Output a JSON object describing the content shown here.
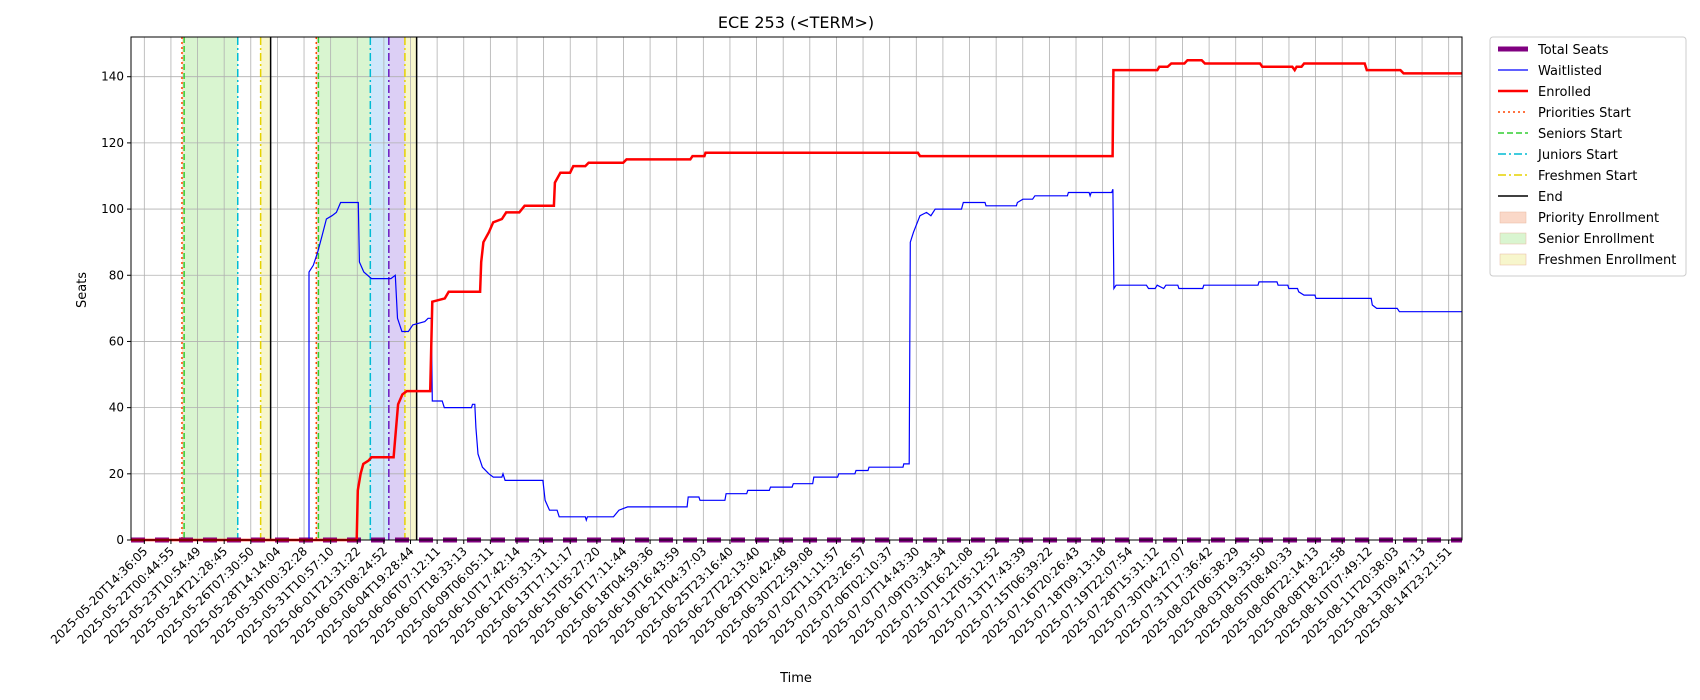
{
  "chart_data": {
    "type": "line",
    "title": "ECE 253 (<TERM>)",
    "xlabel": "Time",
    "ylabel": "Seats",
    "ylim": [
      0,
      152
    ],
    "yticks": [
      0,
      20,
      40,
      60,
      80,
      100,
      120,
      140
    ],
    "grid": true,
    "legend_position": "outside-right-top",
    "x_range": [
      0,
      1
    ],
    "x_tick_labels": [
      "2025-05-20T14:36:05",
      "2025-05-22T00:44:55",
      "2025-05-23T10:54:49",
      "2025-05-24T21:28:45",
      "2025-05-26T07:30:50",
      "2025-05-28T14:14:04",
      "2025-05-30T00:32:28",
      "2025-05-31T10:57:10",
      "2025-06-01T21:31:22",
      "2025-06-03T08:24:52",
      "2025-06-04T19:28:44",
      "2025-06-06T07:12:11",
      "2025-06-07T18:33:13",
      "2025-06-09T06:05:11",
      "2025-06-10T17:42:14",
      "2025-06-12T05:31:31",
      "2025-06-13T17:11:17",
      "2025-06-15T05:27:20",
      "2025-06-16T17:11:44",
      "2025-06-18T04:59:36",
      "2025-06-19T16:43:59",
      "2025-06-21T04:37:03",
      "2025-06-25T23:16:40",
      "2025-06-27T22:13:40",
      "2025-06-29T10:42:48",
      "2025-06-30T22:59:08",
      "2025-07-02T11:11:57",
      "2025-07-03T23:26:57",
      "2025-07-06T02:10:37",
      "2025-07-07T14:43:30",
      "2025-07-09T03:34:34",
      "2025-07-10T16:21:08",
      "2025-07-12T05:12:52",
      "2025-07-13T17:43:39",
      "2025-07-15T06:39:22",
      "2025-07-16T20:26:43",
      "2025-07-18T09:13:18",
      "2025-07-19T22:07:54",
      "2025-07-28T15:31:12",
      "2025-07-30T04:27:07",
      "2025-07-31T17:36:42",
      "2025-08-02T06:38:29",
      "2025-08-03T19:33:50",
      "2025-08-05T08:40:33",
      "2025-08-06T22:14:13",
      "2025-08-08T18:22:58",
      "2025-08-10T07:49:12",
      "2025-08-11T20:38:03",
      "2025-08-13T09:47:13",
      "2025-08-14T23:21:51"
    ],
    "series": [
      {
        "name": "Total Seats",
        "color": "#800080",
        "style": "dashed-thick",
        "points": [
          [
            0,
            0
          ],
          [
            1,
            0
          ]
        ]
      },
      {
        "name": "Waitlisted",
        "color": "#0000ff",
        "style": "solid-thin",
        "points": [
          [
            0,
            0
          ],
          [
            0.1337,
            0
          ],
          [
            0.1337,
            81
          ],
          [
            0.137,
            83
          ],
          [
            0.1403,
            87
          ],
          [
            0.1436,
            92
          ],
          [
            0.1468,
            97
          ],
          [
            0.151,
            98
          ],
          [
            0.1543,
            99
          ],
          [
            0.1575,
            102
          ],
          [
            0.1708,
            102
          ],
          [
            0.1716,
            84
          ],
          [
            0.1749,
            81
          ],
          [
            0.1806,
            79
          ],
          [
            0.1953,
            79
          ],
          [
            0.1986,
            80
          ],
          [
            0.2002,
            67
          ],
          [
            0.2035,
            63
          ],
          [
            0.2084,
            63
          ],
          [
            0.2117,
            65
          ],
          [
            0.2207,
            66
          ],
          [
            0.2232,
            67
          ],
          [
            0.2256,
            67
          ],
          [
            0.2264,
            42
          ],
          [
            0.2338,
            42
          ],
          [
            0.2354,
            40
          ],
          [
            0.2558,
            40
          ],
          [
            0.2566,
            41
          ],
          [
            0.2583,
            41
          ],
          [
            0.2591,
            34
          ],
          [
            0.2607,
            26
          ],
          [
            0.264,
            22
          ],
          [
            0.2689,
            20
          ],
          [
            0.2722,
            19
          ],
          [
            0.2787,
            19
          ],
          [
            0.2795,
            20
          ],
          [
            0.2811,
            18
          ],
          [
            0.3095,
            18
          ],
          [
            0.3111,
            12
          ],
          [
            0.3144,
            9
          ],
          [
            0.3201,
            9
          ],
          [
            0.3217,
            7
          ],
          [
            0.3413,
            7
          ],
          [
            0.3421,
            6
          ],
          [
            0.3429,
            7
          ],
          [
            0.3625,
            7
          ],
          [
            0.3666,
            9
          ],
          [
            0.3731,
            10
          ],
          [
            0.4178,
            10
          ],
          [
            0.4186,
            13
          ],
          [
            0.4267,
            13
          ],
          [
            0.4275,
            12
          ],
          [
            0.4462,
            12
          ],
          [
            0.4471,
            14
          ],
          [
            0.4626,
            14
          ],
          [
            0.4634,
            15
          ],
          [
            0.4796,
            15
          ],
          [
            0.4805,
            16
          ],
          [
            0.4967,
            16
          ],
          [
            0.4976,
            17
          ],
          [
            0.5122,
            17
          ],
          [
            0.513,
            19
          ],
          [
            0.5309,
            19
          ],
          [
            0.5317,
            20
          ],
          [
            0.5439,
            20
          ],
          [
            0.5447,
            21
          ],
          [
            0.5537,
            21
          ],
          [
            0.5545,
            22
          ],
          [
            0.58,
            22
          ],
          [
            0.5806,
            23
          ],
          [
            0.5847,
            23
          ],
          [
            0.5855,
            90
          ],
          [
            0.5879,
            93
          ],
          [
            0.5928,
            98
          ],
          [
            0.5977,
            99
          ],
          [
            0.601,
            98
          ],
          [
            0.6042,
            100
          ],
          [
            0.624,
            100
          ],
          [
            0.6253,
            102
          ],
          [
            0.6416,
            102
          ],
          [
            0.6424,
            101
          ],
          [
            0.6652,
            101
          ],
          [
            0.666,
            102
          ],
          [
            0.6701,
            103
          ],
          [
            0.6774,
            103
          ],
          [
            0.6791,
            104
          ],
          [
            0.7035,
            104
          ],
          [
            0.7043,
            105
          ],
          [
            0.7198,
            105
          ],
          [
            0.7206,
            104
          ],
          [
            0.7214,
            105
          ],
          [
            0.7368,
            105
          ],
          [
            0.7377,
            106
          ],
          [
            0.7385,
            76
          ],
          [
            0.7401,
            77
          ],
          [
            0.7629,
            77
          ],
          [
            0.7645,
            76
          ],
          [
            0.7694,
            76
          ],
          [
            0.771,
            77
          ],
          [
            0.7759,
            76
          ],
          [
            0.7775,
            77
          ],
          [
            0.7865,
            77
          ],
          [
            0.7873,
            76
          ],
          [
            0.8052,
            76
          ],
          [
            0.806,
            77
          ],
          [
            0.8467,
            77
          ],
          [
            0.8475,
            78
          ],
          [
            0.861,
            78
          ],
          [
            0.8618,
            77
          ],
          [
            0.8691,
            77
          ],
          [
            0.8699,
            76
          ],
          [
            0.8764,
            76
          ],
          [
            0.8773,
            75
          ],
          [
            0.8813,
            74
          ],
          [
            0.8895,
            74
          ],
          [
            0.8903,
            73
          ],
          [
            0.9318,
            73
          ],
          [
            0.9326,
            71
          ],
          [
            0.9359,
            70
          ],
          [
            0.9513,
            70
          ],
          [
            0.953,
            69
          ],
          [
            1.0,
            69
          ]
        ]
      },
      {
        "name": "Enrolled",
        "color": "#ff0000",
        "style": "solid-thick",
        "points": [
          [
            0,
            0
          ],
          [
            0.1696,
            0
          ],
          [
            0.1704,
            15
          ],
          [
            0.1725,
            20
          ],
          [
            0.1745,
            23
          ],
          [
            0.1785,
            24
          ],
          [
            0.1806,
            25
          ],
          [
            0.1973,
            25
          ],
          [
            0.1994,
            35
          ],
          [
            0.2007,
            41
          ],
          [
            0.2039,
            44
          ],
          [
            0.2072,
            45
          ],
          [
            0.2248,
            45
          ],
          [
            0.2264,
            72
          ],
          [
            0.2358,
            73
          ],
          [
            0.2387,
            75
          ],
          [
            0.2623,
            75
          ],
          [
            0.2631,
            84
          ],
          [
            0.2648,
            90
          ],
          [
            0.2689,
            93
          ],
          [
            0.2721,
            96
          ],
          [
            0.2787,
            97
          ],
          [
            0.2819,
            99
          ],
          [
            0.2917,
            99
          ],
          [
            0.2957,
            101
          ],
          [
            0.3177,
            101
          ],
          [
            0.3185,
            108
          ],
          [
            0.3226,
            111
          ],
          [
            0.3299,
            111
          ],
          [
            0.3323,
            113
          ],
          [
            0.3413,
            113
          ],
          [
            0.3438,
            114
          ],
          [
            0.3698,
            114
          ],
          [
            0.3723,
            115
          ],
          [
            0.4202,
            115
          ],
          [
            0.4219,
            116
          ],
          [
            0.4308,
            116
          ],
          [
            0.4316,
            117
          ],
          [
            0.5912,
            117
          ],
          [
            0.5928,
            116
          ],
          [
            0.7375,
            116
          ],
          [
            0.7381,
            142
          ],
          [
            0.7711,
            142
          ],
          [
            0.7726,
            143
          ],
          [
            0.7788,
            143
          ],
          [
            0.7816,
            144
          ],
          [
            0.7914,
            144
          ],
          [
            0.7938,
            145
          ],
          [
            0.8044,
            145
          ],
          [
            0.8068,
            144
          ],
          [
            0.8483,
            144
          ],
          [
            0.85,
            143
          ],
          [
            0.8725,
            143
          ],
          [
            0.8743,
            142
          ],
          [
            0.8757,
            143
          ],
          [
            0.8794,
            143
          ],
          [
            0.8814,
            144
          ],
          [
            0.9269,
            144
          ],
          [
            0.9285,
            142
          ],
          [
            0.9537,
            142
          ],
          [
            0.9561,
            141
          ],
          [
            1.0,
            141
          ]
        ]
      }
    ],
    "markers": {
      "priorities_start": [
        0.0383,
        0.1392
      ],
      "seniors_start": [
        0.0399,
        0.1408
      ],
      "juniors_start": [
        0.0802,
        0.1798
      ],
      "freshmen_start": [
        0.0974,
        0.1937,
        0.2058
      ],
      "end": [
        0.1049,
        0.2146
      ]
    },
    "shaded_regions": [
      {
        "label": "Priority Enrollment",
        "x0": 0.0383,
        "x1": 0.0399
      },
      {
        "label": "Senior Enrollment",
        "x0": 0.0399,
        "x1": 0.0802
      },
      {
        "label": "Freshmen Enrollment",
        "x0": 0.0974,
        "x1": 0.1049
      },
      {
        "label": "Priority Enrollment",
        "x0": 0.1392,
        "x1": 0.1408
      },
      {
        "label": "Senior Enrollment",
        "x0": 0.1408,
        "x1": 0.1798
      },
      {
        "label": "Juniors Enrollment",
        "x0": 0.1798,
        "x1": 0.1937
      },
      {
        "label": "Sophomores Enrollment",
        "x0": 0.1937,
        "x1": 0.2058
      },
      {
        "label": "Freshmen Enrollment",
        "x0": 0.2058,
        "x1": 0.2146
      }
    ],
    "legend": [
      {
        "label": "Total Seats",
        "kind": "line",
        "color": "#800080",
        "dash": "none",
        "width": 5
      },
      {
        "label": "Waitlisted",
        "kind": "line",
        "color": "#0000ff",
        "dash": "none",
        "width": 1.2
      },
      {
        "label": "Enrolled",
        "kind": "line",
        "color": "#ff0000",
        "dash": "none",
        "width": 2.5
      },
      {
        "label": "Priorities Start",
        "kind": "line",
        "color": "#ff4500",
        "dash": "2,3",
        "width": 1.5
      },
      {
        "label": "Seniors Start",
        "kind": "line",
        "color": "#32cd32",
        "dash": "6,3",
        "width": 1.5
      },
      {
        "label": "Juniors Start",
        "kind": "line",
        "color": "#00bcd4",
        "dash": "8,3,2,3",
        "width": 1.5
      },
      {
        "label": "Freshmen Start",
        "kind": "line",
        "color": "#e6d200",
        "dash": "8,3,2,3",
        "width": 1.5
      },
      {
        "label": "End",
        "kind": "line",
        "color": "#000000",
        "dash": "none",
        "width": 1.5
      },
      {
        "label": "Priority Enrollment",
        "kind": "patch",
        "color": "#fad8c8"
      },
      {
        "label": "Senior Enrollment",
        "kind": "patch",
        "color": "#d9f5d0"
      },
      {
        "label": "Freshmen Enrollment",
        "kind": "patch",
        "color": "#f7f6cc"
      }
    ]
  },
  "colors": {
    "priority_fill": "#fce0d2",
    "senior_fill": "#d9f5d0",
    "junior_fill": "#cfe7fb",
    "sophomore_fill": "#dccff5",
    "freshmen_fill": "#f7f6cc",
    "grid": "#b0b0b0"
  }
}
